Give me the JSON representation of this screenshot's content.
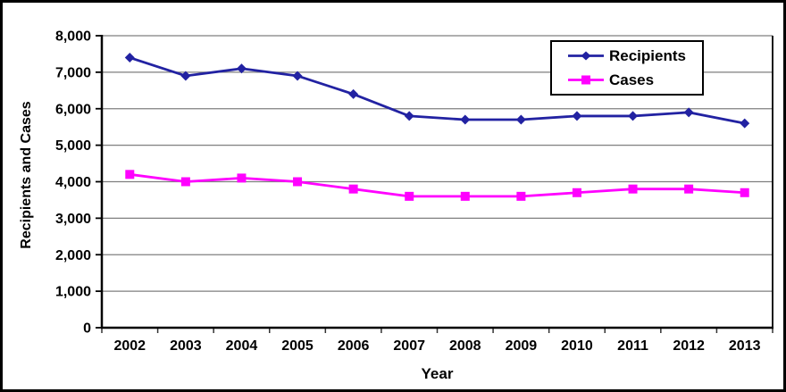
{
  "chart_data": {
    "type": "line",
    "xlabel": "Year",
    "ylabel": "Recipients and Cases",
    "categories": [
      "2002",
      "2003",
      "2004",
      "2005",
      "2006",
      "2007",
      "2008",
      "2009",
      "2010",
      "2011",
      "2012",
      "2013"
    ],
    "series": [
      {
        "name": "Recipients",
        "color": "#2222A2",
        "marker": "diamond",
        "values": [
          7400,
          6900,
          7100,
          6900,
          6400,
          5800,
          5700,
          5700,
          5800,
          5800,
          5900,
          5600
        ]
      },
      {
        "name": "Cases",
        "color": "#FF00FF",
        "marker": "square",
        "values": [
          4200,
          4000,
          4100,
          4000,
          3800,
          3600,
          3600,
          3600,
          3700,
          3800,
          3800,
          3700
        ]
      }
    ],
    "ylim": [
      0,
      8000
    ],
    "ytick_step": 1000,
    "ytick_labels": [
      "0",
      "1,000",
      "2,000",
      "3,000",
      "4,000",
      "5,000",
      "6,000",
      "7,000",
      "8,000"
    ],
    "grid": true,
    "legend_position": "top-right",
    "colors": {
      "axis": "#000000",
      "gridline": "#7F7F7F",
      "tick": "#333333",
      "background": "#FFFFFF",
      "frame_border": "#000000"
    }
  }
}
